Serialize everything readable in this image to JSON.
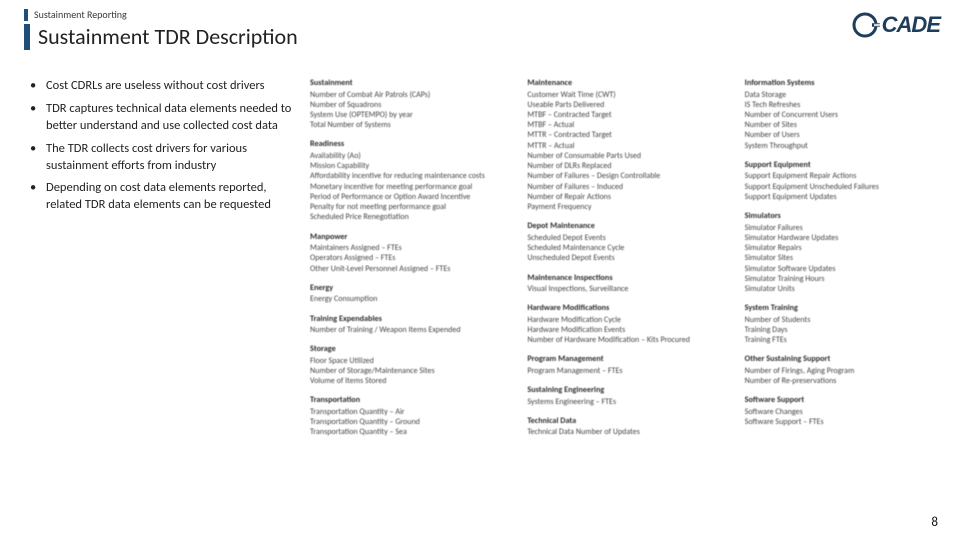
{
  "header": {
    "kicker": "Sustainment Reporting",
    "title": "Sustainment TDR Description",
    "accent_color": "#1f4e79"
  },
  "logo": {
    "text": "CADE"
  },
  "bullets": [
    "Cost CDRLs are useless without cost drivers",
    "TDR captures technical data elements needed to better understand and use collected cost data",
    "The TDR collects cost drivers for various sustainment efforts from industry",
    "Depending on cost data elements reported, related TDR data elements can be requested"
  ],
  "columns": [
    [
      {
        "h": "Sustainment",
        "items": [
          "Number of Combat Air Patrols (CAPs)",
          "Number of Squadrons",
          "System Use (OPTEMPO) by year",
          "Total Number of Systems"
        ]
      },
      {
        "h": "Readiness",
        "items": [
          "Availability (Ao)",
          "Mission Capability",
          "Affordability incentive for reducing maintenance costs",
          "Monetary incentive for meeting performance goal",
          "Period of Performance or Option Award Incentive",
          "Penalty for not meeting performance goal",
          "Scheduled Price Renegotiation"
        ]
      },
      {
        "h": "Manpower",
        "items": [
          "Maintainers Assigned – FTEs",
          "Operators Assigned – FTEs",
          "Other Unit-Level Personnel Assigned – FTEs"
        ]
      },
      {
        "h": "Energy",
        "items": [
          "Energy Consumption"
        ]
      },
      {
        "h": "Training Expendables",
        "items": [
          "Number of Training / Weapon Items Expended"
        ]
      },
      {
        "h": "Storage",
        "items": [
          "Floor Space Utilized",
          "Number of Storage/Maintenance Sites",
          "Volume of Items Stored"
        ]
      },
      {
        "h": "Transportation",
        "items": [
          "Transportation Quantity – Air",
          "Transportation Quantity – Ground",
          "Transportation Quantity – Sea"
        ]
      }
    ],
    [
      {
        "h": "Maintenance",
        "items": [
          "Customer Wait Time (CWT)",
          "Useable Parts Delivered",
          "MTBF – Contracted Target",
          "MTBF – Actual",
          "MTTR – Contracted Target",
          "MTTR – Actual",
          "Number of Consumable Parts Used",
          "Number of DLRs Replaced",
          "Number of Failures – Design Controllable",
          "Number of Failures – Induced",
          "Number of Repair Actions",
          "Payment Frequency"
        ]
      },
      {
        "h": "Depot Maintenance",
        "items": [
          "Scheduled Depot Events",
          "Scheduled Maintenance Cycle",
          "Unscheduled Depot Events"
        ]
      },
      {
        "h": "Maintenance Inspections",
        "items": [
          "Visual Inspections, Surveillance"
        ]
      },
      {
        "h": "Hardware Modifications",
        "items": [
          "Hardware Modification Cycle",
          "Hardware Modification Events",
          "Number of Hardware Modification – Kits Procured"
        ]
      },
      {
        "h": "Program Management",
        "items": [
          "Program Management – FTEs"
        ]
      },
      {
        "h": "Sustaining Engineering",
        "items": [
          "Systems Engineering – FTEs"
        ]
      },
      {
        "h": "Technical Data",
        "items": [
          "Technical Data Number of Updates"
        ]
      }
    ],
    [
      {
        "h": "Information Systems",
        "items": [
          "Data Storage",
          "IS Tech Refreshes",
          "Number of Concurrent Users",
          "Number of Sites",
          "Number of Users",
          "System Throughput"
        ]
      },
      {
        "h": "Support Equipment",
        "items": [
          "Support Equipment Repair Actions",
          "Support Equipment Unscheduled Failures",
          "Support Equipment Updates"
        ]
      },
      {
        "h": "Simulators",
        "items": [
          "Simulator Failures",
          "Simulator Hardware Updates",
          "Simulator Repairs",
          "Simulator Sites",
          "Simulator Software Updates",
          "Simulator Training Hours",
          "Simulator Units"
        ]
      },
      {
        "h": "System Training",
        "items": [
          "Number of Students",
          "Training Days",
          "Training FTEs"
        ]
      },
      {
        "h": "Other Sustaining Support",
        "items": [
          "Number of Firings, Aging Program",
          "Number of Re-preservations"
        ]
      },
      {
        "h": "Software Support",
        "items": [
          "Software Changes",
          "Software Support – FTEs"
        ]
      }
    ]
  ],
  "page_number": "8"
}
